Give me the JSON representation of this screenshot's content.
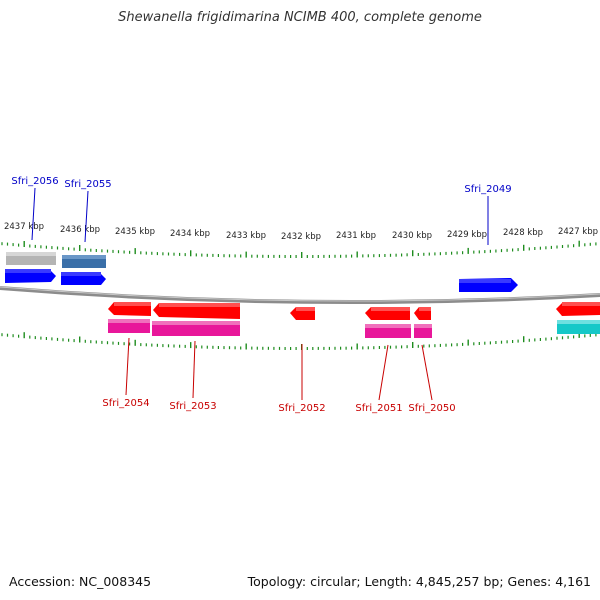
{
  "title": "Shewanella frigidimarina NCIMB 400, complete genome",
  "footer": {
    "accession": "Accession: NC_008345",
    "summary": "Topology: circular; Length: 4,845,257 bp; Genes: 4,161"
  },
  "colors": {
    "top_gene_labels": "#0000c8",
    "bottom_gene_labels": "#c80000",
    "ticks": "#1e8c1e",
    "backbone": "#8c8c8c",
    "forward_gene": "#0000ff",
    "reverse_gene": "#ff0000",
    "forward_cds_steelblue": "#3a6fa8",
    "forward_cds_gray": "#b4b4b4",
    "reverse_cds_pink": "#e8179a",
    "reverse_cds_cyan": "#16c8c8"
  },
  "scale_labels": [
    "2437 kbp",
    "2436 kbp",
    "2435 kbp",
    "2434 kbp",
    "2433 kbp",
    "2432 kbp",
    "2431 kbp",
    "2430 kbp",
    "2429 kbp",
    "2428 kbp",
    "2427 kbp"
  ],
  "top_gene_labels": [
    "Sfri_2056",
    "Sfri_2055",
    "Sfri_2049"
  ],
  "bottom_gene_labels": [
    "Sfri_2054",
    "Sfri_2053",
    "Sfri_2052",
    "Sfri_2051",
    "Sfri_2050"
  ]
}
